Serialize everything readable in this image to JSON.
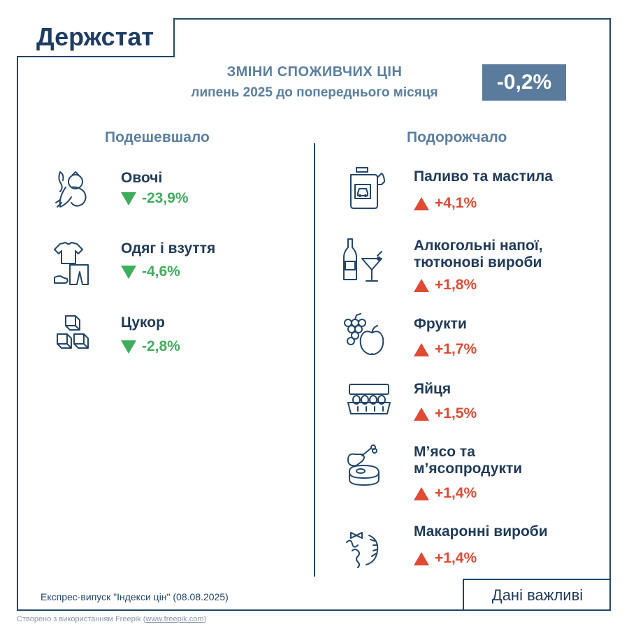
{
  "logo": "Держстат",
  "title": {
    "line1": "ЗМІНИ СПОЖИВЧИХ ЦІН",
    "line2": "липень 2025 до попереднього місяця"
  },
  "index_value": "-0,2%",
  "columns": {
    "cheaper_label": "Подешевшало",
    "pricier_label": "Подорожчало"
  },
  "cheaper": [
    {
      "name": "Овочі",
      "value": "-23,9%",
      "icon": "vegetables-icon"
    },
    {
      "name": "Одяг і взуття",
      "value": "-4,6%",
      "icon": "clothing-icon"
    },
    {
      "name": "Цукор",
      "value": "-2,8%",
      "icon": "sugar-icon"
    }
  ],
  "pricier": [
    {
      "name": "Паливо та мастила",
      "value": "+4,1%",
      "icon": "fuel-icon"
    },
    {
      "name_line1": "Алкогольні напої,",
      "name_line2": "тютюнові вироби",
      "value": "+1,8%",
      "icon": "alcohol-icon"
    },
    {
      "name": "Фрукти",
      "value": "+1,7%",
      "icon": "fruit-icon"
    },
    {
      "name": "Яйця",
      "value": "+1,5%",
      "icon": "eggs-icon"
    },
    {
      "name_line1": "М’ясо та",
      "name_line2": "м’ясопродукти",
      "value": "+1,4%",
      "icon": "meat-icon"
    },
    {
      "name": "Макаронні вироби",
      "value": "+1,4%",
      "icon": "pasta-icon"
    }
  ],
  "footer": {
    "note": "Експрес-випуск \"Індекси цін\" (08.08.2025)",
    "box": "Дані важливі",
    "credit_prefix": "Створено з використанням Freepik (",
    "credit_link": "www.freepik.com",
    "credit_suffix": ")"
  },
  "colors": {
    "navy": "#23466b",
    "title": "#5a7fa3",
    "badge": "#5b7b9c",
    "down": "#3fae5c",
    "up": "#e04a33"
  }
}
